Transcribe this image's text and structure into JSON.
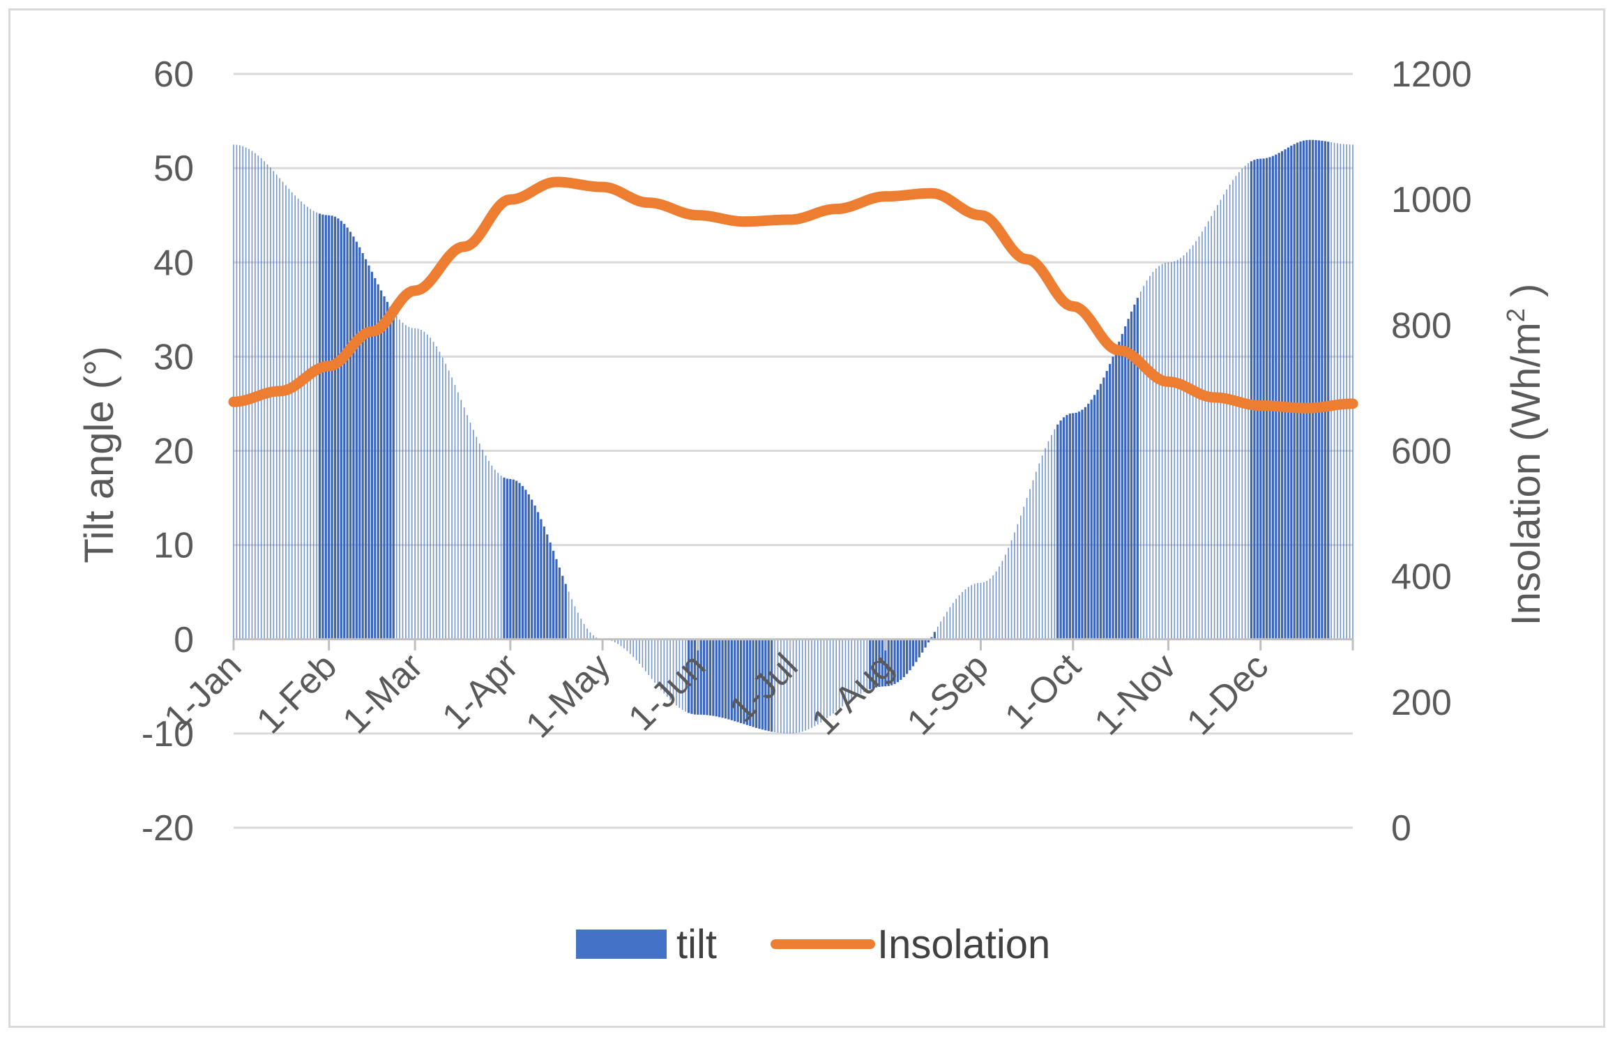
{
  "chart_data": {
    "type": "bar+line",
    "title": "",
    "xlabel": "",
    "categories": [
      "1-Jan",
      "1-Feb",
      "1-Mar",
      "1-Apr",
      "1-May",
      "1-Jun",
      "1-Jul",
      "1-Aug",
      "1-Sep",
      "1-Oct",
      "1-Nov",
      "1-Dec"
    ],
    "days_in_year": 365,
    "month_start_days": [
      0,
      31,
      59,
      90,
      120,
      151,
      181,
      212,
      243,
      273,
      304,
      334
    ],
    "y_left": {
      "label": "Tilt angle (°)",
      "ylim": [
        -20,
        60
      ],
      "ticks": [
        "-20",
        "-10",
        "0",
        "10",
        "20",
        "30",
        "40",
        "50",
        "60"
      ]
    },
    "y_right": {
      "label_main": "Insolation (Wh/m",
      "label_sup": "2",
      "label_close": " )",
      "ylim": [
        0,
        1200
      ],
      "ticks": [
        "0",
        "200",
        "400",
        "600",
        "800",
        "1000",
        "1200"
      ]
    },
    "grid": true,
    "legend_position": "bottom",
    "series": [
      {
        "name": "tilt",
        "type": "bar",
        "axis": "left",
        "color": "#4472C4",
        "dark_color": "#2E5DB8",
        "note": "daily bars, x = day of year, y = tilt in degrees",
        "x": [
          0,
          31,
          59,
          90,
          120,
          151,
          181,
          212,
          243,
          273,
          304,
          334,
          350,
          364
        ],
        "values": [
          52.5,
          45,
          33,
          17,
          0,
          -8,
          -10,
          -5,
          6,
          24,
          40,
          51,
          53,
          52.5
        ]
      },
      {
        "name": "Insolation",
        "type": "line",
        "axis": "right",
        "color": "#ED7D31",
        "x": [
          0,
          15,
          31,
          45,
          59,
          75,
          90,
          105,
          120,
          135,
          151,
          166,
          181,
          196,
          212,
          227,
          243,
          258,
          273,
          288,
          304,
          319,
          334,
          349,
          364
        ],
        "values": [
          678,
          695,
          735,
          790,
          855,
          925,
          1000,
          1028,
          1020,
          995,
          975,
          965,
          968,
          985,
          1005,
          1010,
          975,
          905,
          830,
          760,
          710,
          685,
          672,
          668,
          675
        ]
      }
    ],
    "legend": [
      {
        "label": "tilt",
        "color": "#4472C4"
      },
      {
        "label": "Insolation",
        "color": "#ED7D31"
      }
    ]
  }
}
